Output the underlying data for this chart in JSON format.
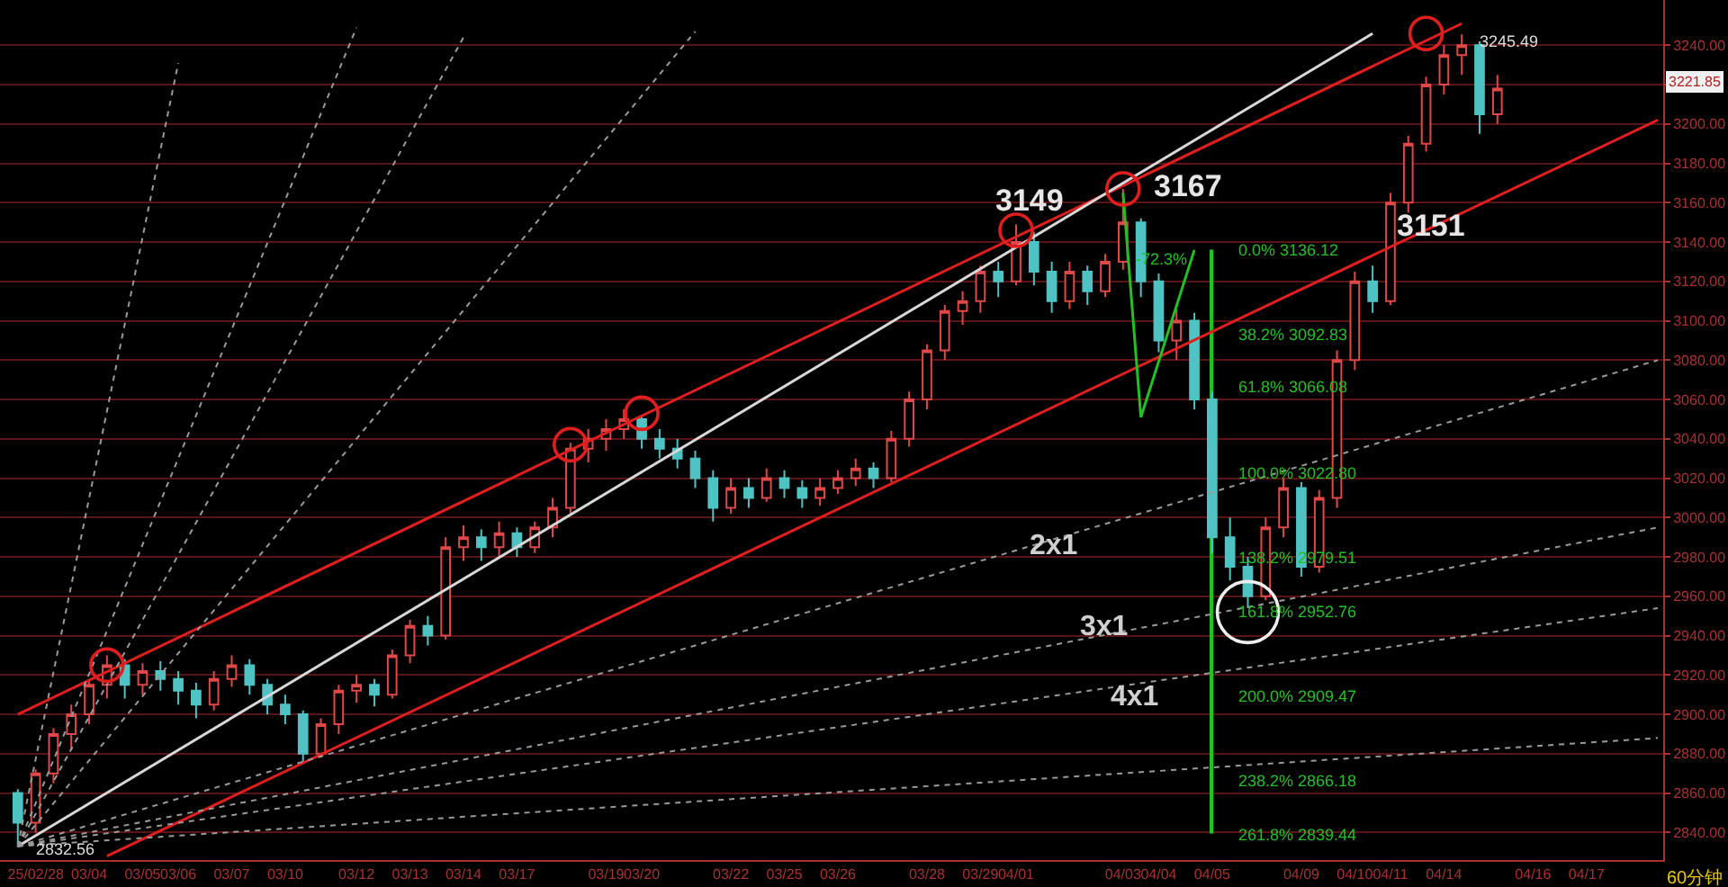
{
  "chart_data": {
    "type": "candlestick",
    "categories": [
      null,
      "25/02/28",
      null,
      null,
      "03/04",
      null,
      null,
      "03/05",
      null,
      "03/06",
      null,
      null,
      "03/07",
      null,
      null,
      "03/10",
      null,
      null,
      null,
      "03/12",
      null,
      null,
      "03/13",
      null,
      null,
      "03/14",
      null,
      null,
      "03/17",
      null,
      null,
      null,
      null,
      "03/19",
      null,
      "03/20",
      null,
      null,
      null,
      null,
      "03/22",
      null,
      null,
      "03/25",
      null,
      null,
      "03/26",
      null,
      null,
      null,
      null,
      "03/28",
      null,
      null,
      "03/29",
      null,
      "04/01",
      null,
      null,
      null,
      null,
      null,
      "04/03",
      null,
      "04/04",
      null,
      null,
      "04/05",
      null,
      null,
      null,
      null,
      "04/09",
      null,
      null,
      "04/10",
      null,
      "04/11",
      null,
      null,
      "04/14",
      null,
      null,
      null,
      null,
      "04/16",
      null,
      null,
      "04/17",
      null,
      null,
      null,
      null
    ],
    "ohlc": [
      [
        2860,
        2862,
        2832.56,
        2845
      ],
      [
        2845,
        2872,
        2840,
        2870
      ],
      [
        2870,
        2893,
        2865,
        2890
      ],
      [
        2890,
        2905,
        2882,
        2900
      ],
      [
        2900,
        2918,
        2895,
        2915
      ],
      [
        2915,
        2930,
        2908,
        2925
      ],
      [
        2925,
        2928,
        2908,
        2915
      ],
      [
        2915,
        2926,
        2910,
        2922
      ],
      [
        2922,
        2927,
        2912,
        2918
      ],
      [
        2918,
        2922,
        2905,
        2912
      ],
      [
        2912,
        2916,
        2898,
        2905
      ],
      [
        2905,
        2922,
        2902,
        2918
      ],
      [
        2918,
        2930,
        2914,
        2925
      ],
      [
        2925,
        2928,
        2910,
        2915
      ],
      [
        2915,
        2918,
        2900,
        2905
      ],
      [
        2905,
        2910,
        2895,
        2900
      ],
      [
        2900,
        2902,
        2875,
        2880
      ],
      [
        2880,
        2898,
        2878,
        2895
      ],
      [
        2895,
        2915,
        2890,
        2912
      ],
      [
        2912,
        2920,
        2906,
        2915
      ],
      [
        2915,
        2918,
        2904,
        2910
      ],
      [
        2910,
        2933,
        2908,
        2930
      ],
      [
        2930,
        2948,
        2926,
        2945
      ],
      [
        2945,
        2950,
        2935,
        2940
      ],
      [
        2940,
        2990,
        2938,
        2985
      ],
      [
        2985,
        2996,
        2978,
        2990
      ],
      [
        2990,
        2994,
        2978,
        2985
      ],
      [
        2985,
        2998,
        2980,
        2992
      ],
      [
        2992,
        2995,
        2980,
        2985
      ],
      [
        2985,
        2998,
        2982,
        2995
      ],
      [
        2995,
        3010,
        2990,
        3005
      ],
      [
        3005,
        3038,
        3002,
        3035
      ],
      [
        3035,
        3045,
        3028,
        3040
      ],
      [
        3040,
        3050,
        3034,
        3045
      ],
      [
        3045,
        3055,
        3040,
        3050
      ],
      [
        3050,
        3052,
        3035,
        3040
      ],
      [
        3040,
        3045,
        3030,
        3035
      ],
      [
        3035,
        3040,
        3025,
        3030
      ],
      [
        3030,
        3034,
        3015,
        3020
      ],
      [
        3020,
        3024,
        2998,
        3005
      ],
      [
        3005,
        3020,
        3002,
        3015
      ],
      [
        3015,
        3020,
        3005,
        3010
      ],
      [
        3010,
        3025,
        3008,
        3020
      ],
      [
        3020,
        3024,
        3010,
        3015
      ],
      [
        3015,
        3019,
        3005,
        3010
      ],
      [
        3010,
        3020,
        3006,
        3015
      ],
      [
        3015,
        3024,
        3012,
        3020
      ],
      [
        3020,
        3030,
        3016,
        3025
      ],
      [
        3025,
        3028,
        3015,
        3020
      ],
      [
        3020,
        3044,
        3018,
        3040
      ],
      [
        3040,
        3064,
        3036,
        3060
      ],
      [
        3060,
        3088,
        3055,
        3085
      ],
      [
        3085,
        3108,
        3080,
        3105
      ],
      [
        3105,
        3115,
        3098,
        3110
      ],
      [
        3110,
        3128,
        3104,
        3125
      ],
      [
        3125,
        3130,
        3112,
        3120
      ],
      [
        3120,
        3149,
        3118,
        3140
      ],
      [
        3140,
        3145,
        3118,
        3125
      ],
      [
        3125,
        3130,
        3104,
        3110
      ],
      [
        3110,
        3130,
        3106,
        3125
      ],
      [
        3125,
        3128,
        3108,
        3115
      ],
      [
        3115,
        3134,
        3112,
        3130
      ],
      [
        3130,
        3167,
        3126,
        3150
      ],
      [
        3150,
        3152,
        3112,
        3120
      ],
      [
        3120,
        3124,
        3084,
        3090
      ],
      [
        3090,
        3106,
        3080,
        3100
      ],
      [
        3100,
        3104,
        3055,
        3060
      ],
      [
        3060,
        3064,
        2982,
        2990
      ],
      [
        2990,
        3000,
        2968,
        2975
      ],
      [
        2975,
        2980,
        2954,
        2960
      ],
      [
        2960,
        3000,
        2958,
        2995
      ],
      [
        2995,
        3020,
        2990,
        3015
      ],
      [
        3015,
        3018,
        2970,
        2975
      ],
      [
        2975,
        3014,
        2972,
        3010
      ],
      [
        3010,
        3085,
        3005,
        3080
      ],
      [
        3080,
        3125,
        3075,
        3120
      ],
      [
        3120,
        3128,
        3104,
        3110
      ],
      [
        3110,
        3165,
        3108,
        3160
      ],
      [
        3160,
        3194,
        3155,
        3190
      ],
      [
        3190,
        3224,
        3186,
        3220
      ],
      [
        3220,
        3240,
        3215,
        3235
      ],
      [
        3235,
        3245.49,
        3225,
        3240
      ],
      [
        3240,
        3242,
        3195,
        3205
      ],
      [
        3205,
        3225,
        3200,
        3218
      ],
      null,
      null,
      null,
      null,
      null,
      null,
      null,
      null,
      null
    ],
    "series": [
      {
        "type": "line",
        "color": "#e01e1e",
        "line_style": "solid",
        "values": [
          2900,
          null,
          null,
          null,
          null,
          null,
          null,
          null,
          null,
          null,
          null,
          null,
          null,
          null,
          null,
          null,
          null,
          null,
          null,
          null,
          null,
          null,
          null,
          null,
          null,
          null,
          null,
          null,
          null,
          null,
          null,
          null,
          null,
          null,
          null,
          null,
          null,
          null,
          null,
          null,
          null,
          null,
          null,
          null,
          null,
          null,
          null,
          null,
          null,
          null,
          null,
          null,
          null,
          null,
          null,
          null,
          null,
          null,
          null,
          null,
          null,
          null,
          null,
          null,
          null,
          null,
          null,
          null,
          null,
          null,
          null,
          null,
          null,
          null,
          null,
          null,
          null,
          null,
          null,
          null,
          null,
          3251,
          null,
          null,
          null,
          null,
          null,
          null,
          null,
          null,
          null,
          null,
          null
        ]
      },
      {
        "type": "line",
        "color": "#e01e1e",
        "line_style": "solid",
        "values": [
          null,
          null,
          null,
          null,
          null,
          2828,
          null,
          null,
          null,
          null,
          null,
          null,
          null,
          null,
          null,
          null,
          null,
          null,
          null,
          null,
          null,
          null,
          null,
          null,
          null,
          null,
          null,
          null,
          null,
          null,
          null,
          null,
          null,
          null,
          null,
          null,
          null,
          null,
          null,
          null,
          null,
          null,
          null,
          null,
          null,
          null,
          null,
          null,
          null,
          null,
          null,
          null,
          null,
          null,
          null,
          null,
          null,
          null,
          null,
          null,
          null,
          null,
          null,
          null,
          null,
          null,
          null,
          null,
          null,
          null,
          null,
          null,
          null,
          null,
          null,
          null,
          null,
          null,
          null,
          null,
          null,
          null,
          null,
          null,
          null,
          null,
          null,
          null,
          null,
          null,
          null,
          null,
          3202
        ]
      },
      {
        "type": "line",
        "color": "#d8d8d8",
        "line_style": "solid",
        "values": [
          2833,
          null,
          null,
          null,
          null,
          null,
          null,
          null,
          null,
          null,
          null,
          null,
          null,
          null,
          null,
          null,
          null,
          null,
          null,
          null,
          null,
          null,
          null,
          null,
          null,
          null,
          null,
          null,
          null,
          null,
          null,
          null,
          null,
          null,
          null,
          null,
          null,
          null,
          null,
          null,
          null,
          null,
          null,
          null,
          null,
          null,
          null,
          null,
          null,
          null,
          null,
          null,
          null,
          null,
          null,
          null,
          null,
          null,
          null,
          null,
          null,
          null,
          null,
          null,
          null,
          null,
          null,
          null,
          null,
          null,
          null,
          null,
          null,
          null,
          null,
          null,
          3246,
          null,
          null,
          null,
          null,
          null,
          null,
          null,
          null,
          null,
          null,
          null,
          null,
          null,
          null,
          null,
          null
        ]
      },
      {
        "type": "line",
        "color": "#9a9a9a",
        "line_style": "dotted",
        "values": [
          2833,
          null,
          null,
          null,
          null,
          null,
          null,
          null,
          null,
          3231,
          null,
          null,
          null,
          null,
          null,
          null,
          null,
          null,
          null,
          null,
          null,
          null,
          null,
          null,
          null,
          null,
          null,
          null,
          null,
          null,
          null,
          null,
          null,
          null,
          null,
          null,
          null,
          null,
          null,
          null,
          null,
          null,
          null,
          null,
          null,
          null,
          null,
          null,
          null,
          null,
          null,
          null,
          null,
          null,
          null,
          null,
          null,
          null,
          null,
          null,
          null,
          null,
          null,
          null,
          null,
          null,
          null,
          null,
          null,
          null,
          null,
          null,
          null,
          null,
          null,
          null,
          null,
          null,
          null,
          null,
          null,
          null,
          null,
          null,
          null,
          null,
          null,
          null,
          null,
          null,
          null,
          null,
          null
        ]
      },
      {
        "type": "line",
        "color": "#9a9a9a",
        "line_style": "dotted",
        "values": [
          2833,
          null,
          null,
          null,
          null,
          null,
          null,
          null,
          null,
          null,
          null,
          null,
          null,
          null,
          null,
          null,
          null,
          null,
          null,
          3249,
          null,
          null,
          null,
          null,
          null,
          null,
          null,
          null,
          null,
          null,
          null,
          null,
          null,
          null,
          null,
          null,
          null,
          null,
          null,
          null,
          null,
          null,
          null,
          null,
          null,
          null,
          null,
          null,
          null,
          null,
          null,
          null,
          null,
          null,
          null,
          null,
          null,
          null,
          null,
          null,
          null,
          null,
          null,
          null,
          null,
          null,
          null,
          null,
          null,
          null,
          null,
          null,
          null,
          null,
          null,
          null,
          null,
          null,
          null,
          null,
          null,
          null,
          null,
          null,
          null,
          null,
          null,
          null,
          null,
          null,
          null,
          null,
          null
        ]
      },
      {
        "type": "line",
        "color": "#9a9a9a",
        "line_style": "dotted",
        "values": [
          2833,
          null,
          null,
          null,
          null,
          null,
          null,
          null,
          null,
          null,
          null,
          null,
          null,
          null,
          null,
          null,
          null,
          null,
          null,
          null,
          null,
          null,
          null,
          null,
          null,
          3244,
          null,
          null,
          null,
          null,
          null,
          null,
          null,
          null,
          null,
          null,
          null,
          null,
          null,
          null,
          null,
          null,
          null,
          null,
          null,
          null,
          null,
          null,
          null,
          null,
          null,
          null,
          null,
          null,
          null,
          null,
          null,
          null,
          null,
          null,
          null,
          null,
          null,
          null,
          null,
          null,
          null,
          null,
          null,
          null,
          null,
          null,
          null,
          null,
          null,
          null,
          null,
          null,
          null,
          null,
          null,
          null,
          null,
          null,
          null,
          null,
          null,
          null,
          null,
          null,
          null,
          null,
          null
        ]
      },
      {
        "type": "line",
        "color": "#9a9a9a",
        "line_style": "dotted",
        "values": [
          2833,
          null,
          null,
          null,
          null,
          null,
          null,
          null,
          null,
          null,
          null,
          null,
          null,
          null,
          null,
          null,
          null,
          null,
          null,
          null,
          null,
          null,
          null,
          null,
          null,
          null,
          null,
          null,
          null,
          null,
          null,
          null,
          null,
          null,
          null,
          null,
          null,
          null,
          3247,
          null,
          null,
          null,
          null,
          null,
          null,
          null,
          null,
          null,
          null,
          null,
          null,
          null,
          null,
          null,
          null,
          null,
          null,
          null,
          null,
          null,
          null,
          null,
          null,
          null,
          null,
          null,
          null,
          null,
          null,
          null,
          null,
          null,
          null,
          null,
          null,
          null,
          null,
          null,
          null,
          null,
          null,
          null,
          null,
          null,
          null,
          null,
          null,
          null,
          null,
          null,
          null,
          null,
          null
        ]
      },
      {
        "type": "line",
        "color": "#9a9a9a",
        "line_style": "dotted",
        "values": [
          2833,
          null,
          null,
          null,
          null,
          null,
          null,
          null,
          null,
          null,
          null,
          null,
          null,
          null,
          null,
          null,
          null,
          null,
          null,
          null,
          null,
          null,
          null,
          null,
          null,
          null,
          null,
          null,
          null,
          null,
          null,
          null,
          null,
          null,
          null,
          null,
          null,
          null,
          null,
          null,
          null,
          null,
          null,
          null,
          null,
          null,
          null,
          null,
          null,
          null,
          null,
          null,
          null,
          null,
          null,
          null,
          null,
          null,
          null,
          null,
          null,
          null,
          null,
          null,
          null,
          null,
          null,
          null,
          null,
          null,
          null,
          null,
          null,
          null,
          null,
          null,
          null,
          null,
          null,
          null,
          null,
          null,
          null,
          null,
          null,
          null,
          null,
          null,
          null,
          null,
          null,
          null,
          3080
        ]
      },
      {
        "type": "line",
        "color": "#9a9a9a",
        "line_style": "dotted",
        "values": [
          2833,
          null,
          null,
          null,
          null,
          null,
          null,
          null,
          null,
          null,
          null,
          null,
          null,
          null,
          null,
          null,
          null,
          null,
          null,
          null,
          null,
          null,
          null,
          null,
          null,
          null,
          null,
          null,
          null,
          null,
          null,
          null,
          null,
          null,
          null,
          null,
          null,
          null,
          null,
          null,
          null,
          null,
          null,
          null,
          null,
          null,
          null,
          null,
          null,
          null,
          null,
          null,
          null,
          null,
          null,
          null,
          null,
          null,
          null,
          null,
          null,
          null,
          null,
          null,
          null,
          null,
          null,
          null,
          null,
          null,
          null,
          null,
          null,
          null,
          null,
          null,
          null,
          null,
          null,
          null,
          null,
          null,
          null,
          null,
          null,
          null,
          null,
          null,
          null,
          null,
          null,
          null,
          2995
        ]
      },
      {
        "type": "line",
        "color": "#9a9a9a",
        "line_style": "dotted",
        "values": [
          2833,
          null,
          null,
          null,
          null,
          null,
          null,
          null,
          null,
          null,
          null,
          null,
          null,
          null,
          null,
          null,
          null,
          null,
          null,
          null,
          null,
          null,
          null,
          null,
          null,
          null,
          null,
          null,
          null,
          null,
          null,
          null,
          null,
          null,
          null,
          null,
          null,
          null,
          null,
          null,
          null,
          null,
          null,
          null,
          null,
          null,
          null,
          null,
          null,
          null,
          null,
          null,
          null,
          null,
          null,
          null,
          null,
          null,
          null,
          null,
          null,
          null,
          null,
          null,
          null,
          null,
          null,
          null,
          null,
          null,
          null,
          null,
          null,
          null,
          null,
          null,
          null,
          null,
          null,
          null,
          null,
          null,
          null,
          null,
          null,
          null,
          null,
          null,
          null,
          null,
          null,
          null,
          2954
        ]
      },
      {
        "type": "line",
        "color": "#9a9a9a",
        "line_style": "dotted",
        "values": [
          2833,
          null,
          null,
          null,
          null,
          null,
          null,
          null,
          null,
          null,
          null,
          null,
          null,
          null,
          null,
          null,
          null,
          null,
          null,
          null,
          null,
          null,
          null,
          null,
          null,
          null,
          null,
          null,
          null,
          null,
          null,
          null,
          null,
          null,
          null,
          null,
          null,
          null,
          null,
          null,
          null,
          null,
          null,
          null,
          null,
          null,
          null,
          null,
          null,
          null,
          null,
          null,
          null,
          null,
          null,
          null,
          null,
          null,
          null,
          null,
          null,
          null,
          null,
          null,
          null,
          null,
          null,
          null,
          null,
          null,
          null,
          null,
          null,
          null,
          null,
          null,
          null,
          null,
          null,
          null,
          null,
          null,
          null,
          null,
          null,
          null,
          null,
          null,
          null,
          null,
          null,
          null,
          2888
        ]
      },
      {
        "type": "bar",
        "color": "#22c022",
        "values": [
          null,
          null,
          null,
          null,
          null,
          null,
          null,
          null,
          null,
          null,
          null,
          null,
          null,
          null,
          null,
          null,
          null,
          null,
          null,
          null,
          null,
          null,
          null,
          null,
          null,
          null,
          null,
          null,
          null,
          null,
          null,
          null,
          null,
          null,
          null,
          null,
          null,
          null,
          null,
          null,
          null,
          null,
          null,
          null,
          null,
          null,
          null,
          null,
          null,
          null,
          null,
          null,
          null,
          null,
          null,
          null,
          null,
          null,
          null,
          null,
          null,
          null,
          null,
          null,
          null,
          null,
          null,
          296.68,
          null,
          null,
          null,
          null,
          null,
          null,
          null,
          null,
          null,
          null,
          null,
          null,
          null,
          null,
          null,
          null,
          null,
          null,
          null,
          null,
          null,
          null,
          null,
          null,
          null
        ],
        "base": [
          null,
          null,
          null,
          null,
          null,
          null,
          null,
          null,
          null,
          null,
          null,
          null,
          null,
          null,
          null,
          null,
          null,
          null,
          null,
          null,
          null,
          null,
          null,
          null,
          null,
          null,
          null,
          null,
          null,
          null,
          null,
          null,
          null,
          null,
          null,
          null,
          null,
          null,
          null,
          null,
          null,
          null,
          null,
          null,
          null,
          null,
          null,
          null,
          null,
          null,
          null,
          null,
          null,
          null,
          null,
          null,
          null,
          null,
          null,
          null,
          null,
          null,
          null,
          null,
          null,
          null,
          null,
          2839.44,
          null,
          null,
          null,
          null,
          null,
          null,
          null,
          null,
          null,
          null,
          null,
          null,
          null,
          null,
          null,
          null,
          null,
          null,
          null,
          null,
          null,
          null,
          null,
          null,
          null
        ]
      },
      {
        "type": "line",
        "color": "#22c022",
        "line_style": "solid",
        "values": [
          null,
          null,
          null,
          null,
          null,
          null,
          null,
          null,
          null,
          null,
          null,
          null,
          null,
          null,
          null,
          null,
          null,
          null,
          null,
          null,
          null,
          null,
          null,
          null,
          null,
          null,
          null,
          null,
          null,
          null,
          null,
          null,
          null,
          null,
          null,
          null,
          null,
          null,
          null,
          null,
          null,
          null,
          null,
          null,
          null,
          null,
          null,
          null,
          null,
          null,
          null,
          null,
          null,
          null,
          null,
          null,
          null,
          null,
          null,
          null,
          null,
          null,
          3165,
          3051,
          null,
          null,
          3136,
          null,
          null,
          null,
          null,
          null,
          null,
          null,
          null,
          null,
          null,
          null,
          null,
          null,
          null,
          null,
          null,
          null,
          null,
          null,
          null,
          null,
          null,
          null,
          null,
          null,
          null
        ]
      },
      {
        "type": "scatter",
        "color": "#e01e1e",
        "marker": "circle",
        "values": [
          null,
          null,
          null,
          null,
          null,
          2925,
          null,
          null,
          null,
          null,
          null,
          null,
          null,
          null,
          null,
          null,
          null,
          null,
          null,
          null,
          null,
          null,
          null,
          null,
          null,
          null,
          null,
          null,
          null,
          null,
          null,
          3037,
          null,
          null,
          null,
          3053,
          null,
          null,
          null,
          null,
          null,
          null,
          null,
          null,
          null,
          null,
          null,
          null,
          null,
          null,
          null,
          null,
          null,
          null,
          null,
          null,
          3146,
          null,
          null,
          null,
          null,
          null,
          3167,
          null,
          null,
          null,
          null,
          null,
          null,
          null,
          null,
          null,
          null,
          null,
          null,
          null,
          null,
          null,
          null,
          3246,
          null,
          null,
          null,
          null,
          null,
          null,
          null,
          null,
          null,
          null,
          null,
          null,
          null
        ]
      },
      {
        "type": "scatter",
        "color": "#eeeeee",
        "marker": "circle",
        "values": [
          null,
          null,
          null,
          null,
          null,
          null,
          null,
          null,
          null,
          null,
          null,
          null,
          null,
          null,
          null,
          null,
          null,
          null,
          null,
          null,
          null,
          null,
          null,
          null,
          null,
          null,
          null,
          null,
          null,
          null,
          null,
          null,
          null,
          null,
          null,
          null,
          null,
          null,
          null,
          null,
          null,
          null,
          null,
          null,
          null,
          null,
          null,
          null,
          null,
          null,
          null,
          null,
          null,
          null,
          null,
          null,
          null,
          null,
          null,
          null,
          null,
          null,
          null,
          null,
          null,
          null,
          null,
          null,
          null,
          2952,
          null,
          null,
          null,
          null,
          null,
          null,
          null,
          null,
          null,
          null,
          null,
          null,
          null,
          null,
          null,
          null,
          null,
          null,
          null,
          null,
          null,
          null,
          null
        ]
      }
    ],
    "ylim": [
      2826,
      3263
    ],
    "yticks": [
      {
        "value": 2840,
        "label": "2840.00"
      },
      {
        "value": 2860,
        "label": "2860.00"
      },
      {
        "value": 2880,
        "label": "2880.00"
      },
      {
        "value": 2900,
        "label": "2900.00"
      },
      {
        "value": 2920,
        "label": "2920.00"
      },
      {
        "value": 2940,
        "label": "2940.00"
      },
      {
        "value": 2960,
        "label": "2960.00"
      },
      {
        "value": 2980,
        "label": "2980.00"
      },
      {
        "value": 3000,
        "label": "3000.00"
      },
      {
        "value": 3020,
        "label": "3020.00"
      },
      {
        "value": 3040,
        "label": "3040.00"
      },
      {
        "value": 3060,
        "label": "3060.00"
      },
      {
        "value": 3080,
        "label": "3080.00"
      },
      {
        "value": 3100,
        "label": "3100.00"
      },
      {
        "value": 3120,
        "label": "3120.00"
      },
      {
        "value": 3140,
        "label": "3140.00"
      },
      {
        "value": 3160,
        "label": "3160.00"
      },
      {
        "value": 3180,
        "label": "3180.00"
      },
      {
        "value": 3200,
        "label": "3200.00"
      },
      {
        "value": 3220,
        "label": null
      },
      {
        "value": 3240,
        "label": "3240.00"
      }
    ],
    "grid": "y",
    "annotations": [
      "3149",
      "3167",
      "3151",
      "2x1",
      "3x1",
      "4x1",
      "3245.49",
      "2832.56",
      "-72.3%",
      "0.0% 3136.12",
      "38.2% 3092.83",
      "61.8% 3066.08",
      "100.0% 3022.80",
      "138.2% 2979.51",
      "161.8% 2952.76",
      "200.0% 2909.47",
      "238.2% 2866.18",
      "261.8% 2839.44",
      "3221.85",
      "60分钟"
    ]
  }
}
